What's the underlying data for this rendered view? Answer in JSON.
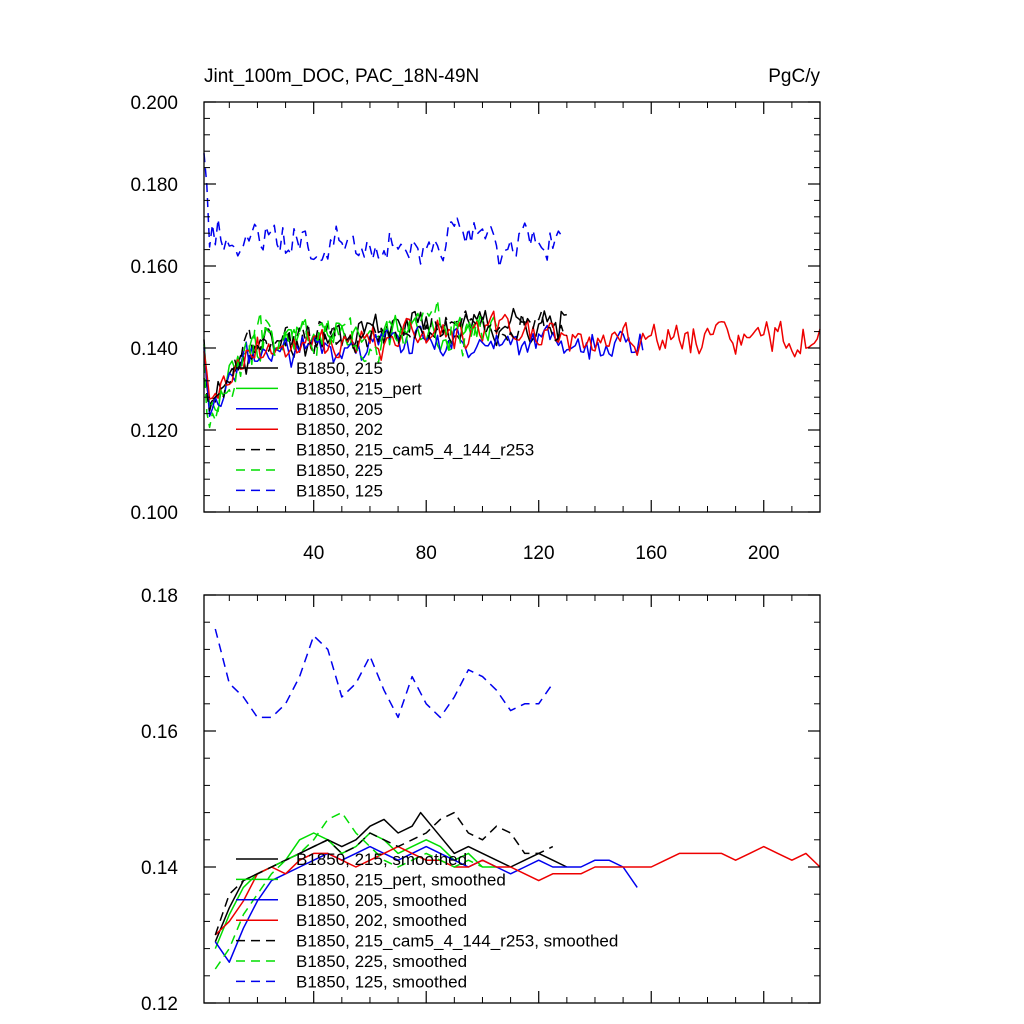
{
  "chart_data": [
    {
      "type": "line",
      "title": "Jint_100m_DOC, PAC_18N-49N",
      "units": "PgC/y",
      "xlabel": "",
      "ylabel": "",
      "xlim": [
        1,
        220
      ],
      "ylim": [
        0.1,
        0.2
      ],
      "yticks": [
        0.1,
        0.12,
        0.14,
        0.16,
        0.18,
        0.2
      ],
      "ytick_labels": [
        "0.100",
        "0.120",
        "0.140",
        "0.160",
        "0.180",
        "0.200"
      ],
      "xticks": [
        40,
        80,
        120,
        160,
        200
      ],
      "xtick_labels": [
        "40",
        "80",
        "120",
        "160",
        "200"
      ],
      "series": [
        {
          "name": "B1850, 215",
          "color": "#000000",
          "dash": "solid",
          "x_end": 130,
          "start": 0.14,
          "dip": 0.126,
          "base": 0.14,
          "trend": 0.006,
          "amp": 0.006,
          "seed": 11
        },
        {
          "name": "B1850, 215_pert",
          "color": "#00dd00",
          "dash": "solid",
          "x_end": 105,
          "start": 0.137,
          "dip": 0.124,
          "base": 0.141,
          "trend": 0.004,
          "amp": 0.006,
          "seed": 23
        },
        {
          "name": "B1850, 205",
          "color": "#0000ee",
          "dash": "solid",
          "x_end": 157,
          "start": 0.138,
          "dip": 0.122,
          "base": 0.139,
          "trend": 0.003,
          "amp": 0.0055,
          "seed": 37
        },
        {
          "name": "B1850, 202",
          "color": "#ee0000",
          "dash": "solid",
          "x_end": 220,
          "start": 0.137,
          "dip": 0.127,
          "base": 0.139,
          "trend": 0.004,
          "amp": 0.006,
          "seed": 41
        },
        {
          "name": "B1850, 215_cam5_4_144_r253",
          "color": "#000000",
          "dash": "9,6",
          "x_end": 130,
          "start": 0.135,
          "dip": 0.127,
          "base": 0.141,
          "trend": 0.004,
          "amp": 0.0055,
          "seed": 53
        },
        {
          "name": "B1850, 225",
          "color": "#00dd00",
          "dash": "9,6",
          "x_end": 100,
          "start": 0.133,
          "dip": 0.122,
          "base": 0.142,
          "trend": 0.003,
          "amp": 0.0075,
          "seed": 67
        },
        {
          "name": "B1850, 125",
          "color": "#0000ee",
          "dash": "9,6",
          "x_end": 128,
          "start": 0.186,
          "dip": 0.168,
          "base": 0.166,
          "trend": 0.0,
          "amp": 0.007,
          "seed": 79
        }
      ]
    },
    {
      "type": "line",
      "title": "",
      "xlim": [
        1,
        220
      ],
      "ylim": [
        0.12,
        0.18
      ],
      "yticks": [
        0.12,
        0.14,
        0.16,
        0.18
      ],
      "ytick_labels": [
        "0.12",
        "0.14",
        "0.16",
        "0.18"
      ],
      "xticks": [
        40,
        80,
        120,
        160,
        200
      ],
      "xtick_labels": [],
      "series": [
        {
          "name": "B1850, 215, smoothed",
          "color": "#000000",
          "dash": "solid",
          "x": [
            5,
            10,
            15,
            20,
            25,
            30,
            35,
            40,
            45,
            50,
            55,
            60,
            65,
            70,
            75,
            78,
            82,
            86,
            90,
            95,
            100,
            105,
            110,
            115,
            120,
            125,
            130
          ],
          "y": [
            0.129,
            0.134,
            0.138,
            0.139,
            0.14,
            0.141,
            0.142,
            0.143,
            0.144,
            0.143,
            0.144,
            0.146,
            0.147,
            0.145,
            0.146,
            0.148,
            0.146,
            0.144,
            0.142,
            0.143,
            0.142,
            0.141,
            0.14,
            0.141,
            0.142,
            0.141,
            0.14
          ]
        },
        {
          "name": "B1850, 215_pert, smoothed",
          "color": "#00dd00",
          "dash": "solid",
          "x": [
            5,
            10,
            15,
            20,
            25,
            30,
            35,
            40,
            45,
            50,
            55,
            60,
            65,
            70,
            75,
            80,
            85,
            90,
            95,
            100,
            105
          ],
          "y": [
            0.128,
            0.133,
            0.137,
            0.139,
            0.14,
            0.141,
            0.144,
            0.145,
            0.144,
            0.142,
            0.143,
            0.145,
            0.144,
            0.142,
            0.143,
            0.144,
            0.143,
            0.141,
            0.142,
            0.14,
            0.14
          ]
        },
        {
          "name": "B1850, 205, smoothed",
          "color": "#0000ee",
          "dash": "solid",
          "x": [
            5,
            10,
            15,
            20,
            25,
            30,
            35,
            40,
            45,
            50,
            55,
            60,
            65,
            70,
            75,
            80,
            85,
            90,
            95,
            100,
            105,
            110,
            115,
            120,
            125,
            130,
            135,
            140,
            145,
            150,
            155
          ],
          "y": [
            0.129,
            0.126,
            0.131,
            0.135,
            0.138,
            0.139,
            0.14,
            0.141,
            0.142,
            0.141,
            0.142,
            0.143,
            0.142,
            0.141,
            0.142,
            0.143,
            0.142,
            0.141,
            0.14,
            0.141,
            0.14,
            0.139,
            0.14,
            0.141,
            0.14,
            0.14,
            0.14,
            0.141,
            0.141,
            0.14,
            0.137
          ]
        },
        {
          "name": "B1850, 202, smoothed",
          "color": "#ee0000",
          "dash": "solid",
          "x": [
            5,
            10,
            15,
            20,
            25,
            30,
            35,
            40,
            45,
            50,
            55,
            60,
            65,
            70,
            75,
            80,
            85,
            90,
            95,
            100,
            105,
            110,
            115,
            120,
            125,
            130,
            135,
            140,
            145,
            150,
            155,
            160,
            165,
            170,
            175,
            180,
            185,
            190,
            195,
            200,
            205,
            210,
            215,
            220
          ],
          "y": [
            0.13,
            0.132,
            0.135,
            0.139,
            0.14,
            0.139,
            0.141,
            0.142,
            0.142,
            0.141,
            0.14,
            0.141,
            0.142,
            0.143,
            0.142,
            0.141,
            0.141,
            0.14,
            0.14,
            0.141,
            0.14,
            0.14,
            0.139,
            0.138,
            0.139,
            0.139,
            0.139,
            0.14,
            0.14,
            0.14,
            0.14,
            0.14,
            0.141,
            0.142,
            0.142,
            0.142,
            0.142,
            0.141,
            0.142,
            0.143,
            0.142,
            0.141,
            0.142,
            0.14
          ]
        },
        {
          "name": "B1850, 215_cam5_4_144_r253, smoothed",
          "color": "#000000",
          "dash": "9,6",
          "x": [
            5,
            10,
            15,
            20,
            25,
            30,
            35,
            40,
            45,
            50,
            55,
            60,
            65,
            70,
            75,
            80,
            85,
            90,
            95,
            100,
            105,
            110,
            115,
            120,
            125
          ],
          "y": [
            0.13,
            0.136,
            0.138,
            0.139,
            0.14,
            0.141,
            0.142,
            0.143,
            0.144,
            0.142,
            0.143,
            0.145,
            0.144,
            0.143,
            0.144,
            0.145,
            0.147,
            0.148,
            0.145,
            0.144,
            0.146,
            0.145,
            0.142,
            0.142,
            0.143
          ]
        },
        {
          "name": "B1850, 225, smoothed",
          "color": "#00dd00",
          "dash": "9,6",
          "x": [
            5,
            10,
            15,
            20,
            25,
            30,
            35,
            40,
            45,
            50,
            55,
            60,
            65,
            70,
            75,
            80,
            85,
            90,
            95,
            100
          ],
          "y": [
            0.125,
            0.128,
            0.133,
            0.136,
            0.139,
            0.141,
            0.142,
            0.144,
            0.147,
            0.148,
            0.145,
            0.143,
            0.141,
            0.14,
            0.141,
            0.142,
            0.141,
            0.14,
            0.141,
            0.14
          ]
        },
        {
          "name": "B1850, 125, smoothed",
          "color": "#0000ee",
          "dash": "9,6",
          "x": [
            5,
            10,
            15,
            20,
            25,
            30,
            35,
            40,
            45,
            50,
            55,
            60,
            65,
            70,
            75,
            80,
            85,
            90,
            95,
            100,
            105,
            110,
            115,
            120,
            125
          ],
          "y": [
            0.175,
            0.167,
            0.165,
            0.162,
            0.162,
            0.164,
            0.168,
            0.174,
            0.172,
            0.165,
            0.167,
            0.171,
            0.166,
            0.162,
            0.168,
            0.164,
            0.162,
            0.165,
            0.169,
            0.168,
            0.166,
            0.163,
            0.164,
            0.164,
            0.167
          ]
        }
      ]
    }
  ]
}
